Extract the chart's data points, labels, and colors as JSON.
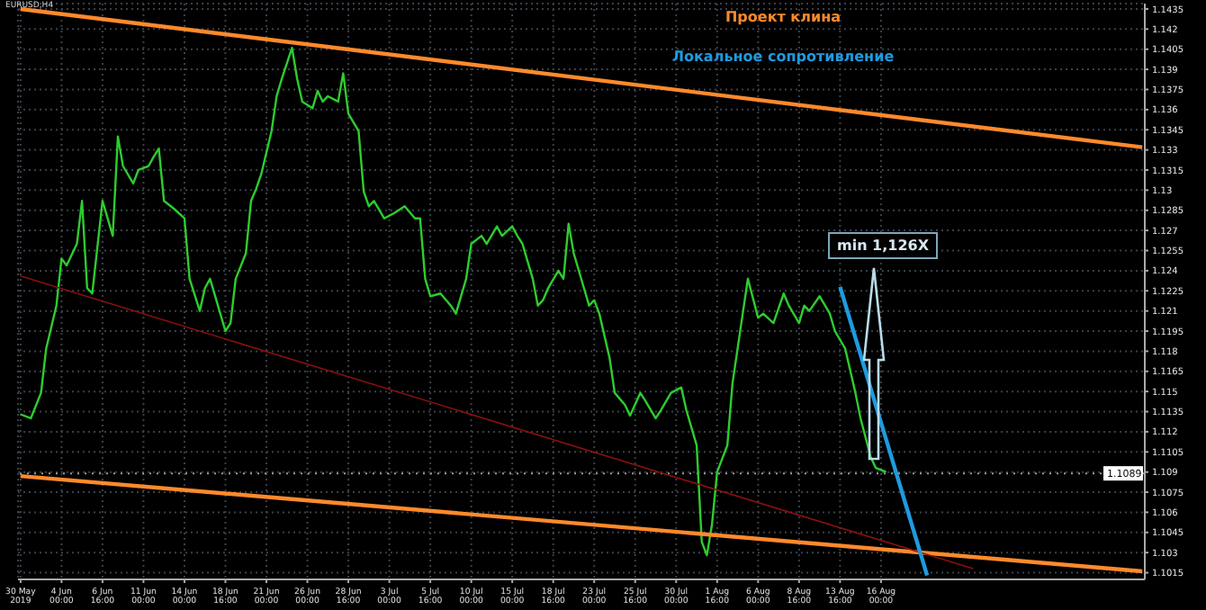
{
  "chart_data": {
    "type": "line",
    "title": "Проект клина",
    "subtitle": "Локальное сопротивление",
    "annotations": [
      "min 1,126X",
      "EURUSD,H4"
    ],
    "categories": [
      "30 May 2019",
      null,
      null,
      null,
      null,
      null,
      null,
      null,
      "4 Jun 00:00",
      null,
      null,
      null,
      null,
      null,
      null,
      null,
      "6 Jun 16:00",
      null,
      null,
      null,
      null,
      null,
      null,
      null,
      "11 Jun 00:00",
      null,
      null,
      null,
      null,
      null,
      null,
      null,
      "14 Jun 00:00",
      null,
      null,
      null,
      null,
      null,
      null,
      null,
      "18 Jun 16:00",
      null,
      null,
      null,
      null,
      null,
      null,
      null,
      "21 Jun 00:00",
      null,
      null,
      null,
      null,
      null,
      null,
      null,
      "26 Jun 00:00",
      null,
      null,
      null,
      null,
      null,
      null,
      null,
      "28 Jun 16:00",
      null,
      null,
      null,
      null,
      null,
      null,
      null,
      "3 Jul 00:00",
      null,
      null,
      null,
      null,
      null,
      null,
      null,
      "5 Jul 16:00",
      null,
      null,
      null,
      null,
      null,
      null,
      null,
      "10 Jul 00:00",
      null,
      null,
      null,
      null,
      null,
      null,
      null,
      "15 Jul 00:00",
      null,
      null,
      null,
      null,
      null,
      null,
      null,
      "18 Jul 16:00",
      null,
      null,
      null,
      null,
      null,
      null,
      null,
      "23 Jul 00:00",
      null,
      null,
      null,
      null,
      null,
      null,
      null,
      "25 Jul 16:00",
      null,
      null,
      null,
      null,
      null,
      null,
      null,
      "30 Jul 00:00",
      null,
      null,
      null,
      null,
      null,
      null,
      null,
      "1 Aug 16:00",
      null,
      null,
      null,
      null,
      null,
      null,
      null,
      "6 Aug 00:00",
      null,
      null,
      null,
      null,
      null,
      null,
      null,
      "8 Aug 16:00",
      null,
      null,
      null,
      null,
      null,
      null,
      null,
      "13 Aug 16:00",
      null,
      null,
      null,
      null,
      null,
      null,
      null,
      "16 Aug 00:00",
      null,
      null,
      null,
      null,
      null,
      null,
      null,
      null,
      null,
      null,
      null,
      null,
      null,
      null,
      null,
      null,
      null,
      null,
      null,
      null,
      null,
      null,
      null,
      null,
      null,
      null,
      null,
      null,
      null,
      null,
      null,
      null,
      null,
      null,
      null,
      null,
      null,
      null,
      null,
      null,
      null,
      null,
      null,
      null,
      null,
      null,
      null,
      null,
      null,
      null,
      null
    ],
    "ylim": [
      1.101,
      1.1439
    ],
    "yticks": [
      1.1015,
      1.103,
      1.1045,
      1.106,
      1.1075,
      1.109,
      1.1105,
      1.112,
      1.1135,
      1.115,
      1.1165,
      1.118,
      1.1195,
      1.121,
      1.1225,
      1.124,
      1.1255,
      1.127,
      1.1285,
      1.13,
      1.1315,
      1.133,
      1.1345,
      1.136,
      1.1375,
      1.139,
      1.1405,
      1.142,
      1.1435
    ],
    "grid": true,
    "legend": false,
    "marker": "none",
    "line_style": "solid",
    "ref_lines": [
      {
        "axis": "y",
        "value": 1.1089,
        "label": "1.1089",
        "color": "#9a9a9a",
        "line_style": "dotted"
      }
    ],
    "series": [
      {
        "color": "#2ecc2e",
        "values": [
          1.1133,
          null,
          1.113,
          null,
          1.1149,
          1.1182,
          null,
          1.1214,
          1.1249,
          1.1244,
          null,
          1.126,
          1.1292,
          1.1227,
          1.1223,
          null,
          1.1292,
          1.1279,
          1.1266,
          1.134,
          1.1318,
          null,
          1.1305,
          1.1315,
          null,
          1.1318,
          1.1325,
          1.1331,
          1.1292,
          null,
          1.1286,
          null,
          1.1279,
          1.1234,
          null,
          1.121,
          1.1227,
          1.1234,
          null,
          1.1208,
          1.1195,
          1.1201,
          1.1234,
          null,
          1.1253,
          1.1292,
          1.1301,
          1.1312,
          null,
          1.1344,
          1.137,
          1.1383,
          null,
          1.1406,
          1.1383,
          1.1366,
          null,
          1.1361,
          1.1374,
          1.1366,
          1.137,
          null,
          1.1366,
          1.1387,
          1.1357,
          null,
          1.1344,
          1.1299,
          1.1288,
          1.1292,
          null,
          1.1279,
          null,
          1.1283,
          null,
          1.1288,
          null,
          1.1279,
          1.1279,
          1.1234,
          1.1221,
          null,
          1.1223,
          null,
          1.1214,
          1.1208,
          null,
          1.1234,
          1.126,
          null,
          1.1266,
          1.126,
          null,
          1.1273,
          1.1266,
          null,
          1.1273,
          1.1266,
          1.126,
          null,
          1.1234,
          1.1214,
          1.1218,
          1.1227,
          null,
          1.124,
          1.1234,
          1.1275,
          1.1253,
          null,
          1.1227,
          1.1214,
          1.1218,
          1.1208,
          null,
          1.1175,
          1.1149,
          null,
          1.114,
          1.1132,
          null,
          1.1149,
          1.1143,
          null,
          1.113,
          1.1136,
          null,
          1.1149,
          null,
          1.1153,
          1.1136,
          null,
          1.111,
          1.1038,
          1.1028,
          1.1051,
          1.109,
          null,
          1.111,
          1.1156,
          null,
          1.1208,
          1.1234,
          null,
          1.1205,
          1.1208,
          null,
          1.1201,
          null,
          1.1223,
          1.1214,
          null,
          1.1201,
          1.1214,
          1.121,
          null,
          1.1221,
          null,
          1.1208,
          1.1195,
          null,
          1.1182,
          null,
          1.1149,
          1.113,
          null,
          1.1101,
          1.1093,
          null,
          1.109,
          null,
          null,
          null,
          null,
          null,
          null,
          null,
          null,
          null,
          null,
          null,
          null,
          null,
          null,
          null,
          null,
          null,
          null,
          null,
          null,
          null,
          null,
          null,
          null,
          null,
          null,
          null,
          null,
          null,
          null,
          null,
          null,
          null,
          null,
          null,
          null,
          null,
          null,
          null,
          null,
          null,
          null,
          null,
          null,
          null,
          null,
          null,
          null,
          null,
          null
        ]
      },
      {
        "color": "#ff8a2b",
        "values": [
          1.1435,
          null,
          null,
          null,
          null,
          null,
          null,
          null,
          null,
          null,
          null,
          null,
          null,
          null,
          null,
          null,
          null,
          null,
          null,
          null,
          null,
          null,
          null,
          null,
          null,
          null,
          null,
          null,
          null,
          null,
          null,
          null,
          null,
          null,
          null,
          null,
          null,
          null,
          null,
          null,
          null,
          null,
          null,
          null,
          null,
          null,
          null,
          null,
          null,
          null,
          null,
          null,
          null,
          null,
          null,
          null,
          null,
          null,
          null,
          null,
          null,
          null,
          null,
          null,
          null,
          null,
          null,
          null,
          null,
          null,
          null,
          null,
          null,
          null,
          null,
          null,
          null,
          null,
          null,
          null,
          null,
          null,
          null,
          null,
          null,
          null,
          null,
          null,
          null,
          null,
          null,
          null,
          null,
          null,
          null,
          null,
          null,
          null,
          null,
          null,
          null,
          null,
          null,
          null,
          null,
          null,
          null,
          null,
          null,
          null,
          null,
          null,
          null,
          null,
          null,
          null,
          null,
          null,
          null,
          null,
          null,
          null,
          null,
          null,
          null,
          null,
          null,
          null,
          null,
          null,
          null,
          null,
          null,
          null,
          null,
          null,
          null,
          null,
          null,
          null,
          null,
          null,
          null,
          null,
          null,
          null,
          null,
          null,
          null,
          null,
          null,
          null,
          null,
          null,
          null,
          null,
          null,
          null,
          null,
          null,
          null,
          null,
          null,
          null,
          null,
          null,
          null,
          null,
          null,
          null,
          null,
          null,
          null,
          null,
          null,
          null,
          null,
          null,
          null,
          null,
          null,
          null,
          null,
          null,
          null,
          null,
          null,
          null,
          null,
          null,
          null,
          null,
          null,
          null,
          null,
          null,
          null,
          null,
          null,
          null,
          null,
          null,
          null,
          null,
          null,
          null,
          null,
          null,
          null,
          null,
          null,
          null,
          null,
          null,
          null,
          null,
          null,
          null,
          null,
          1.1332
        ]
      },
      {
        "color": "#ff8a2b",
        "values": [
          1.1087,
          null,
          null,
          null,
          null,
          null,
          null,
          null,
          null,
          null,
          null,
          null,
          null,
          null,
          null,
          null,
          null,
          null,
          null,
          null,
          null,
          null,
          null,
          null,
          null,
          null,
          null,
          null,
          null,
          null,
          null,
          null,
          null,
          null,
          null,
          null,
          null,
          null,
          null,
          null,
          null,
          null,
          null,
          null,
          null,
          null,
          null,
          null,
          null,
          null,
          null,
          null,
          null,
          null,
          null,
          null,
          null,
          null,
          null,
          null,
          null,
          null,
          null,
          null,
          null,
          null,
          null,
          null,
          null,
          null,
          null,
          null,
          null,
          null,
          null,
          null,
          null,
          null,
          null,
          null,
          null,
          null,
          null,
          null,
          null,
          null,
          null,
          null,
          null,
          null,
          null,
          null,
          null,
          null,
          null,
          null,
          null,
          null,
          null,
          null,
          null,
          null,
          null,
          null,
          null,
          null,
          null,
          null,
          null,
          null,
          null,
          null,
          null,
          null,
          null,
          null,
          null,
          null,
          null,
          null,
          null,
          null,
          null,
          null,
          null,
          null,
          null,
          null,
          null,
          null,
          null,
          null,
          null,
          null,
          null,
          null,
          null,
          null,
          null,
          null,
          null,
          null,
          null,
          null,
          null,
          null,
          null,
          null,
          null,
          null,
          null,
          null,
          null,
          null,
          null,
          null,
          null,
          null,
          null,
          null,
          null,
          null,
          null,
          null,
          null,
          null,
          null,
          null,
          null,
          null,
          null,
          null,
          null,
          null,
          null,
          null,
          null,
          null,
          null,
          null,
          null,
          null,
          null,
          null,
          null,
          null,
          null,
          null,
          null,
          null,
          null,
          null,
          null,
          null,
          null,
          null,
          null,
          null,
          null,
          null,
          null,
          null,
          null,
          null,
          null,
          null,
          null,
          null,
          null,
          null,
          null,
          null,
          null,
          null,
          null,
          null,
          null,
          null,
          null,
          1.1016
        ]
      },
      {
        "color": "#8b1010",
        "values": [
          1.1236,
          null,
          null,
          null,
          null,
          null,
          null,
          null,
          null,
          null,
          null,
          null,
          null,
          null,
          null,
          null,
          null,
          null,
          null,
          null,
          null,
          null,
          null,
          null,
          null,
          null,
          null,
          null,
          null,
          null,
          null,
          null,
          null,
          null,
          null,
          null,
          null,
          null,
          null,
          null,
          null,
          null,
          null,
          null,
          null,
          null,
          null,
          null,
          null,
          null,
          null,
          null,
          null,
          null,
          null,
          null,
          null,
          null,
          null,
          null,
          null,
          null,
          null,
          null,
          null,
          null,
          null,
          null,
          null,
          null,
          null,
          null,
          null,
          null,
          null,
          null,
          null,
          null,
          null,
          null,
          null,
          null,
          null,
          null,
          null,
          null,
          null,
          null,
          null,
          null,
          null,
          null,
          null,
          null,
          null,
          null,
          null,
          null,
          null,
          null,
          null,
          null,
          null,
          null,
          null,
          null,
          null,
          null,
          null,
          null,
          null,
          null,
          null,
          null,
          null,
          null,
          null,
          null,
          null,
          null,
          null,
          null,
          null,
          null,
          null,
          null,
          null,
          null,
          null,
          null,
          null,
          null,
          null,
          null,
          null,
          null,
          null,
          null,
          null,
          null,
          null,
          null,
          null,
          null,
          null,
          null,
          null,
          null,
          null,
          null,
          null,
          null,
          null,
          null,
          null,
          null,
          null,
          null,
          null,
          null,
          null,
          null,
          null,
          null,
          null,
          null,
          null,
          null,
          null,
          null,
          null,
          null,
          null,
          null,
          null,
          null,
          null,
          null,
          null,
          null,
          null,
          null,
          null,
          null,
          null,
          null,
          1.1018,
          null,
          null,
          null,
          null,
          null,
          null,
          null,
          null,
          null,
          null,
          null,
          null,
          null,
          null,
          null,
          null,
          null,
          null,
          null,
          null,
          null,
          null,
          null,
          null,
          null,
          null,
          null,
          null,
          null,
          null,
          null,
          null,
          null
        ]
      },
      {
        "color": "#1e9be0",
        "values": [
          null,
          null,
          null,
          null,
          null,
          null,
          null,
          null,
          null,
          null,
          null,
          null,
          null,
          null,
          null,
          null,
          null,
          null,
          null,
          null,
          null,
          null,
          null,
          null,
          null,
          null,
          null,
          null,
          null,
          null,
          null,
          null,
          null,
          null,
          null,
          null,
          null,
          null,
          null,
          null,
          null,
          null,
          null,
          null,
          null,
          null,
          null,
          null,
          null,
          null,
          null,
          null,
          null,
          null,
          null,
          null,
          null,
          null,
          null,
          null,
          null,
          null,
          null,
          null,
          null,
          null,
          null,
          null,
          null,
          null,
          null,
          null,
          null,
          null,
          null,
          null,
          null,
          null,
          null,
          null,
          null,
          null,
          null,
          null,
          null,
          null,
          null,
          null,
          null,
          null,
          null,
          null,
          null,
          null,
          null,
          null,
          null,
          null,
          null,
          null,
          null,
          null,
          null,
          null,
          null,
          null,
          null,
          null,
          null,
          null,
          null,
          null,
          null,
          null,
          null,
          null,
          null,
          null,
          null,
          null,
          null,
          null,
          null,
          null,
          null,
          null,
          null,
          null,
          null,
          null,
          null,
          null,
          null,
          null,
          null,
          null,
          null,
          null,
          null,
          null,
          null,
          null,
          null,
          null,
          null,
          null,
          null,
          null,
          null,
          null,
          null,
          null,
          null,
          null,
          null,
          null,
          null,
          null,
          null,
          null,
          1.1228,
          null,
          null,
          null,
          null,
          null,
          null,
          null,
          null,
          null,
          null,
          null,
          null,
          null,
          null,
          null,
          null,
          1.1013,
          null,
          null,
          null,
          null,
          null,
          null,
          null,
          null,
          null,
          null,
          null,
          null,
          null,
          null,
          null,
          null,
          null,
          null,
          null,
          null,
          null,
          null,
          null,
          null,
          null,
          null,
          null,
          null,
          null,
          null,
          null,
          null,
          null,
          null,
          null,
          null,
          null,
          null,
          null,
          null,
          null,
          null
        ]
      }
    ]
  }
}
